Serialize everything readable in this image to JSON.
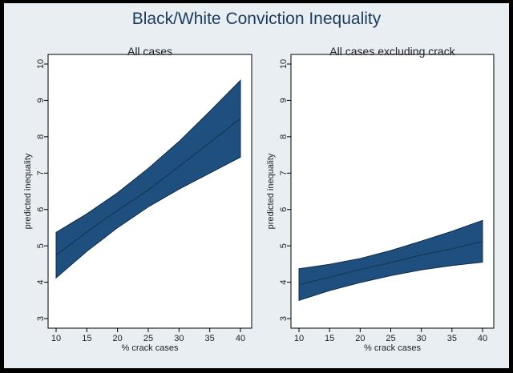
{
  "title": "Black/White Conviction Inequality",
  "chart_data": [
    {
      "type": "area",
      "title": "All cases",
      "xlabel": "% crack cases",
      "ylabel": "predicted inequality",
      "xlim": [
        10,
        40
      ],
      "ylim": [
        3,
        10
      ],
      "xticks": [
        "10",
        "15",
        "20",
        "25",
        "30",
        "35",
        "40"
      ],
      "yticks": [
        "3",
        "4",
        "5",
        "6",
        "7",
        "8",
        "9",
        "10"
      ],
      "grid": false,
      "x": [
        10,
        15,
        20,
        25,
        30,
        35,
        40
      ],
      "series": [
        {
          "role": "upper",
          "values": [
            5.37,
            5.88,
            6.46,
            7.13,
            7.87,
            8.7,
            9.55
          ]
        },
        {
          "role": "estimate",
          "values": [
            4.74,
            5.38,
            5.98,
            6.54,
            7.18,
            7.84,
            8.5
          ]
        },
        {
          "role": "lower",
          "values": [
            4.12,
            4.85,
            5.5,
            6.07,
            6.56,
            7.0,
            7.44
          ]
        }
      ]
    },
    {
      "type": "area",
      "title": "All cases excluding crack",
      "xlabel": "% crack cases",
      "ylabel": "predicted inequality",
      "xlim": [
        10,
        40
      ],
      "ylim": [
        3,
        10
      ],
      "xticks": [
        "10",
        "15",
        "20",
        "25",
        "30",
        "35",
        "40"
      ],
      "yticks": [
        "3",
        "4",
        "5",
        "6",
        "7",
        "8",
        "9",
        "10"
      ],
      "grid": false,
      "x": [
        10,
        15,
        20,
        25,
        30,
        35,
        40
      ],
      "series": [
        {
          "role": "upper",
          "values": [
            4.37,
            4.49,
            4.65,
            4.87,
            5.13,
            5.4,
            5.7
          ]
        },
        {
          "role": "estimate",
          "values": [
            3.93,
            4.14,
            4.35,
            4.54,
            4.75,
            4.92,
            5.12
          ]
        },
        {
          "role": "lower",
          "values": [
            3.5,
            3.77,
            3.99,
            4.18,
            4.34,
            4.46,
            4.55
          ]
        }
      ]
    }
  ],
  "colors": {
    "band": "#1e4f7e",
    "line": "#153856",
    "plot_bg": "#ffffff",
    "outer_bg": "#e9eef3",
    "title": "#1c3a5c"
  }
}
